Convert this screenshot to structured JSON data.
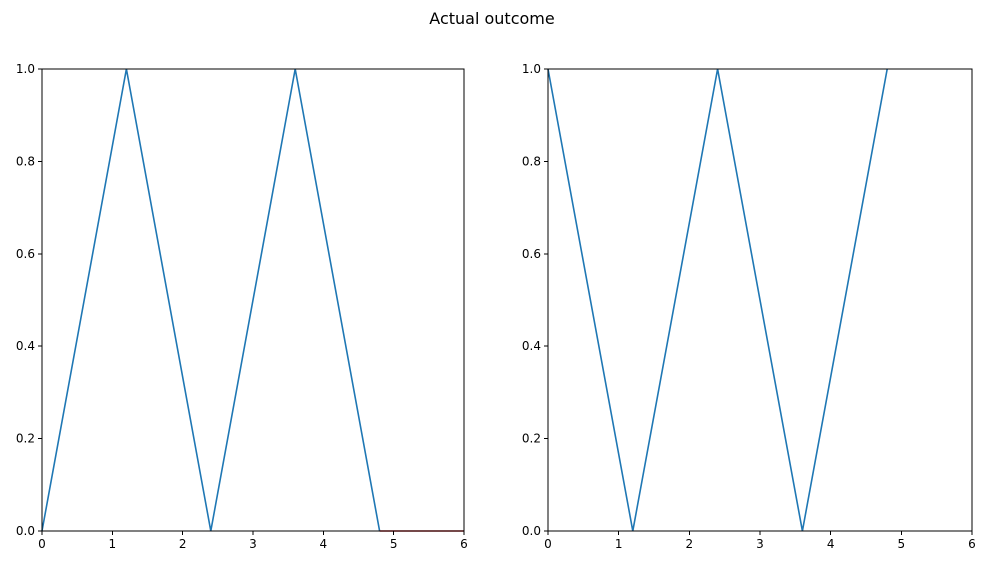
{
  "figure": {
    "title": "Actual outcome"
  },
  "chart_data": [
    {
      "type": "line",
      "title": "",
      "xlabel": "",
      "ylabel": "",
      "xlim": [
        0,
        6
      ],
      "ylim": [
        0,
        1
      ],
      "xticks": [
        "0",
        "1",
        "2",
        "3",
        "4",
        "5",
        "6"
      ],
      "yticks": [
        "0.0",
        "0.2",
        "0.4",
        "0.6",
        "0.8",
        "1.0"
      ],
      "grid": false,
      "series": [
        {
          "color": "#1f77b4",
          "x": [
            0,
            1.2,
            2.4,
            3.6,
            4.8
          ],
          "y": [
            0,
            1,
            0,
            1,
            0
          ]
        },
        {
          "color": "#d62728",
          "x": [
            4.8,
            6
          ],
          "y": [
            0,
            0
          ]
        }
      ]
    },
    {
      "type": "line",
      "title": "",
      "xlabel": "",
      "ylabel": "",
      "xlim": [
        0,
        6
      ],
      "ylim": [
        0,
        1
      ],
      "xticks": [
        "0",
        "1",
        "2",
        "3",
        "4",
        "5",
        "6"
      ],
      "yticks": [
        "0.0",
        "0.2",
        "0.4",
        "0.6",
        "0.8",
        "1.0"
      ],
      "grid": false,
      "series": [
        {
          "color": "#1f77b4",
          "x": [
            0,
            1.2,
            2.4,
            3.6,
            4.8
          ],
          "y": [
            1,
            0,
            1,
            0,
            1
          ]
        }
      ]
    }
  ]
}
